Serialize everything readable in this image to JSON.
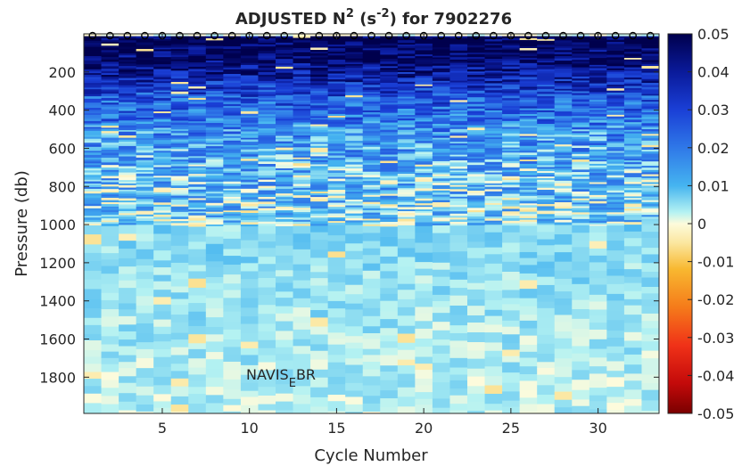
{
  "chart_data": {
    "type": "heatmap",
    "title": "ADJUSTED N",
    "title_superscript": "2",
    "title_unit_open": " (s",
    "title_unit_superscript": "-2",
    "title_unit_close": ") for 7902276",
    "xlabel": "Cycle Number",
    "ylabel": "Pressure (db)",
    "annotation": "NAVIS",
    "annotation_subscript": "E",
    "annotation_suffix": "BR",
    "x_range": [
      1,
      33
    ],
    "y_range": [
      0,
      1990
    ],
    "y_reversed": true,
    "x_ticks": [
      5,
      10,
      15,
      20,
      25,
      30
    ],
    "x_tick_labels": [
      "5",
      "10",
      "15",
      "20",
      "25",
      "30"
    ],
    "y_ticks": [
      200,
      400,
      600,
      800,
      1000,
      1200,
      1400,
      1600,
      1800
    ],
    "y_tick_labels": [
      "200",
      "400",
      "600",
      "800",
      "1000",
      "1200",
      "1400",
      "1600",
      "1800"
    ],
    "colorbar": {
      "range": [
        -0.05,
        0.05
      ],
      "ticks": [
        0.05,
        0.04,
        0.03,
        0.02,
        0.01,
        0,
        -0.01,
        -0.02,
        -0.03,
        -0.04,
        -0.05
      ],
      "tick_labels": [
        "0.05",
        "0.04",
        "0.03",
        "0.02",
        "0.01",
        "0",
        "-0.01",
        "-0.02",
        "-0.03",
        "-0.04",
        "-0.05"
      ],
      "colormap": "diverging: dark red (-0.05) through yellow/cream (0) to cyan, blue, dark navy (0.05)"
    },
    "cycles": 33,
    "surface_markers": "open circles at the top of each cycle",
    "value_profile_by_pressure": [
      {
        "pressure": 50,
        "value": 0.05
      },
      {
        "pressure": 150,
        "value": 0.045
      },
      {
        "pressure": 250,
        "value": 0.035
      },
      {
        "pressure": 350,
        "value": 0.025
      },
      {
        "pressure": 450,
        "value": 0.02
      },
      {
        "pressure": 550,
        "value": 0.015
      },
      {
        "pressure": 700,
        "value": 0.011
      },
      {
        "pressure": 900,
        "value": 0.008
      },
      {
        "pressure": 1000,
        "value": 0.006
      },
      {
        "pressure": 1300,
        "value": 0.005
      },
      {
        "pressure": 1600,
        "value": 0.004
      },
      {
        "pressure": 1990,
        "value": 0.003
      }
    ],
    "grid": false
  }
}
